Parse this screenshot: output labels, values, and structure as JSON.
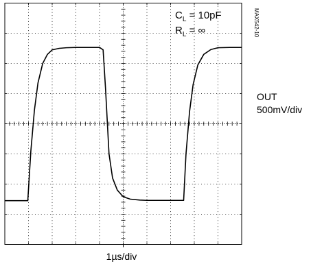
{
  "figure_id": "MAX542-10",
  "annotations": {
    "load_capacitance": {
      "symbol": "C",
      "subscript": "L",
      "value": " = 10pF"
    },
    "load_resistance": {
      "symbol": "R",
      "subscript": "L",
      "value": " = ∞"
    }
  },
  "channel": {
    "name": "OUT",
    "scale": "500mV/div"
  },
  "timebase": "1µs/div",
  "colors": {
    "trace": "#000000",
    "grid": "#000000",
    "background": "#ffffff"
  },
  "chart_data": {
    "type": "line",
    "title": "",
    "xlabel": "1µs/div",
    "ylabel": "OUT 500mV/div",
    "x_unit": "divisions",
    "y_unit": "divisions from center",
    "xlim": [
      0,
      10
    ],
    "ylim": [
      -4,
      4
    ],
    "grid": true,
    "divisions": {
      "x": 10,
      "y": 8
    },
    "series": [
      {
        "x": [
          0.0,
          0.97,
          1.1,
          1.25,
          1.4,
          1.6,
          1.8,
          2.0,
          2.3,
          2.6,
          3.0,
          3.5,
          4.0,
          4.15,
          4.25,
          4.4,
          4.55,
          4.75,
          5.0,
          5.3,
          5.7,
          6.0,
          7.0,
          7.55,
          7.65,
          7.8,
          7.95,
          8.15,
          8.4,
          8.7,
          9.0,
          9.5,
          10.0
        ],
        "y": [
          -2.55,
          -2.55,
          -0.9,
          0.45,
          1.35,
          2.0,
          2.3,
          2.45,
          2.5,
          2.52,
          2.53,
          2.53,
          2.53,
          2.45,
          1.2,
          -1.0,
          -1.8,
          -2.2,
          -2.42,
          -2.5,
          -2.53,
          -2.54,
          -2.54,
          -2.54,
          -1.0,
          0.4,
          1.3,
          1.95,
          2.3,
          2.46,
          2.52,
          2.53,
          2.53
        ]
      }
    ]
  }
}
